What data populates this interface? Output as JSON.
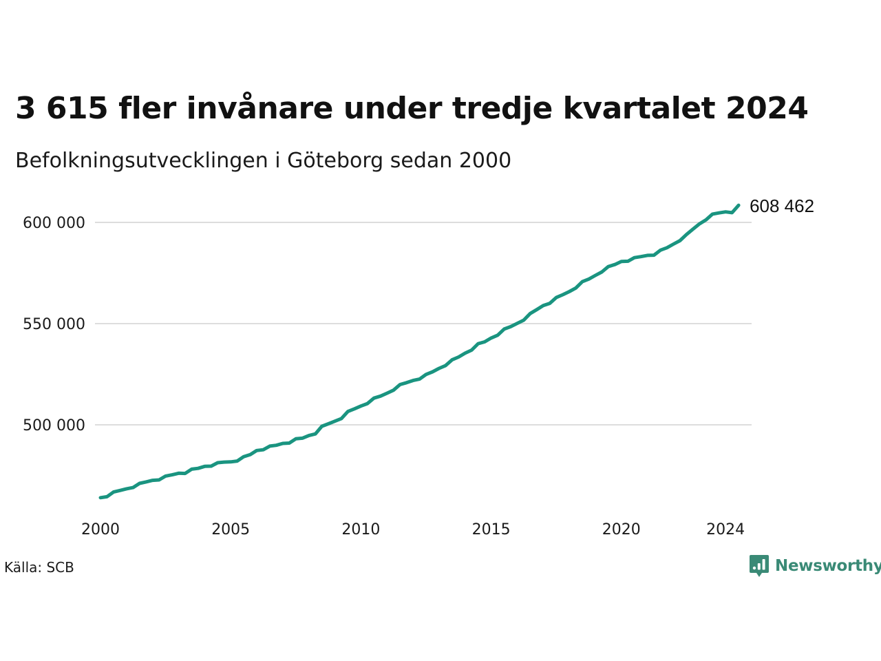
{
  "title": "3 615 fler invånare under tredje kvartalet 2024",
  "subtitle": "Befolkningsutvecklingen i Göteborg sedan 2000",
  "source": "Källa: SCB",
  "brand": {
    "name": "Newsworthy",
    "icon": "newsworthy-logo-icon",
    "color": "#3a8a76"
  },
  "colors": {
    "line": "#1a9480",
    "grid": "#dddddd"
  },
  "chart_data": {
    "type": "line",
    "x_tick_labels": [
      "2000",
      "2005",
      "2010",
      "2015",
      "2020",
      "2024"
    ],
    "x_ticks": [
      2000,
      2005,
      2010,
      2015,
      2020,
      2024
    ],
    "y_tick_labels": [
      "500 000",
      "550 000",
      "600 000"
    ],
    "y_ticks": [
      500000,
      550000,
      600000
    ],
    "xlim": [
      2000,
      2025
    ],
    "ylim": [
      460000,
      610000
    ],
    "grid": "horizontal",
    "end_label": "608 462",
    "series": [
      {
        "x": [
          "2000Q1",
          "2000Q2",
          "2000Q3",
          "2000Q4",
          "2001Q1",
          "2001Q2",
          "2001Q3",
          "2001Q4",
          "2002Q1",
          "2002Q2",
          "2002Q3",
          "2002Q4",
          "2003Q1",
          "2003Q2",
          "2003Q3",
          "2003Q4",
          "2004Q1",
          "2004Q2",
          "2004Q3",
          "2004Q4",
          "2005Q1",
          "2005Q2",
          "2005Q3",
          "2005Q4",
          "2006Q1",
          "2006Q2",
          "2006Q3",
          "2006Q4",
          "2007Q1",
          "2007Q2",
          "2007Q3",
          "2007Q4",
          "2008Q1",
          "2008Q2",
          "2008Q3",
          "2008Q4",
          "2009Q1",
          "2009Q2",
          "2009Q3",
          "2009Q4",
          "2010Q1",
          "2010Q2",
          "2010Q3",
          "2010Q4",
          "2011Q1",
          "2011Q2",
          "2011Q3",
          "2011Q4",
          "2012Q1",
          "2012Q2",
          "2012Q3",
          "2012Q4",
          "2013Q1",
          "2013Q2",
          "2013Q3",
          "2013Q4",
          "2014Q1",
          "2014Q2",
          "2014Q3",
          "2014Q4",
          "2015Q1",
          "2015Q2",
          "2015Q3",
          "2015Q4",
          "2016Q1",
          "2016Q2",
          "2016Q3",
          "2016Q4",
          "2017Q1",
          "2017Q2",
          "2017Q3",
          "2017Q4",
          "2018Q1",
          "2018Q2",
          "2018Q3",
          "2018Q4",
          "2019Q1",
          "2019Q2",
          "2019Q3",
          "2019Q4",
          "2020Q1",
          "2020Q2",
          "2020Q3",
          "2020Q4",
          "2021Q1",
          "2021Q2",
          "2021Q3",
          "2021Q4",
          "2022Q1",
          "2022Q2",
          "2022Q3",
          "2022Q4",
          "2023Q1",
          "2023Q2",
          "2023Q3",
          "2023Q4",
          "2024Q1",
          "2024Q2",
          "2024Q3"
        ],
        "values": [
          464000,
          464500,
          466800,
          467600,
          468400,
          469000,
          471100,
          471800,
          472600,
          472800,
          474700,
          475300,
          476100,
          476000,
          478100,
          478500,
          479500,
          479600,
          481300,
          481600,
          481700,
          482100,
          484300,
          485300,
          487300,
          487700,
          489500,
          489900,
          490800,
          491000,
          493100,
          493400,
          494700,
          495500,
          499300,
          500500,
          501800,
          503100,
          506600,
          507900,
          509300,
          510500,
          513200,
          514200,
          515600,
          517100,
          519900,
          520800,
          521900,
          522600,
          524900,
          526200,
          527900,
          529300,
          532100,
          533500,
          535400,
          536900,
          540100,
          541000,
          542900,
          544300,
          547300,
          548500,
          550100,
          551700,
          555000,
          556900,
          558900,
          560000,
          562900,
          564300,
          565800,
          567600,
          570700,
          572000,
          573800,
          575500,
          578200,
          579200,
          580700,
          580800,
          582600,
          583100,
          583700,
          583800,
          586300,
          587500,
          589300,
          591000,
          594000,
          596700,
          599300,
          601300,
          604100,
          604700,
          605200,
          604800,
          608462
        ]
      }
    ]
  }
}
